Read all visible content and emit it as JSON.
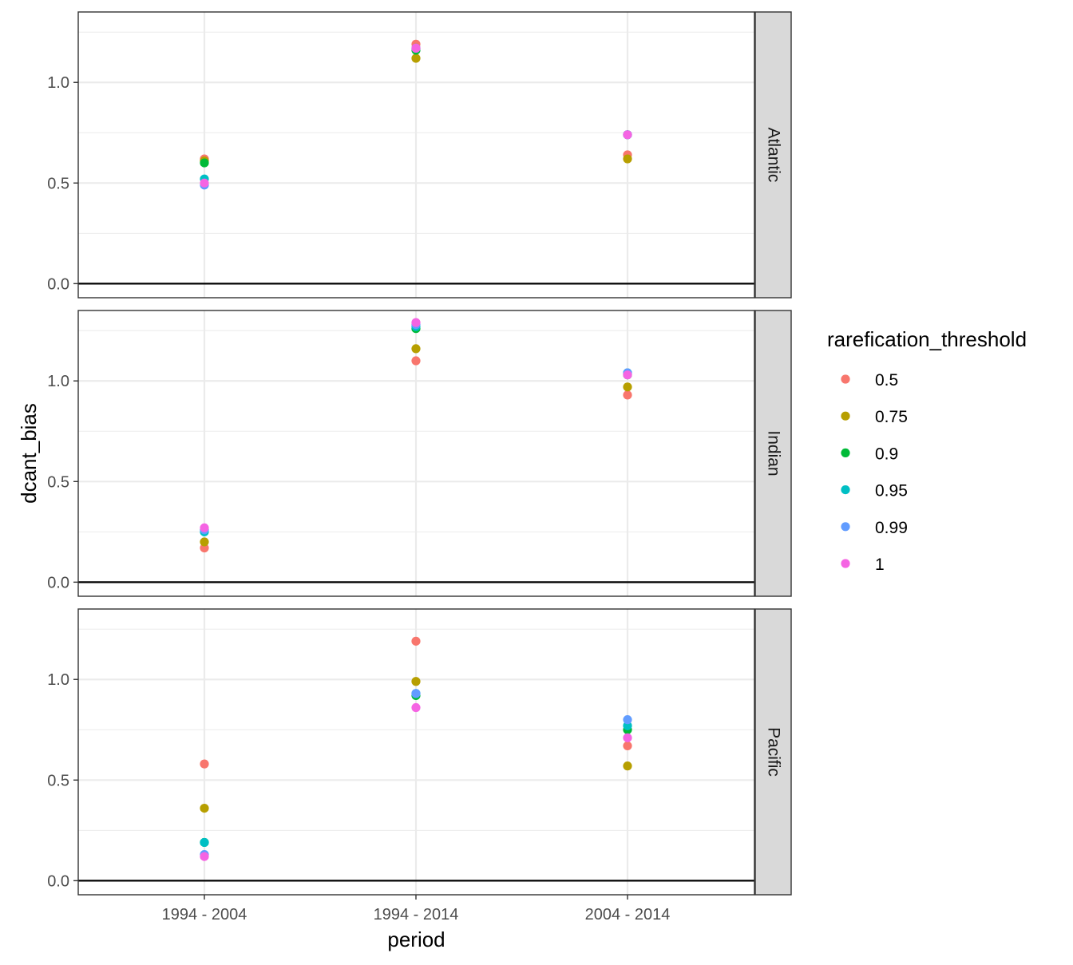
{
  "chart_data": {
    "type": "scatter",
    "xlabel": "period",
    "ylabel": "dcant_bias",
    "categories": [
      "1994 - 2004",
      "1994 - 2014",
      "2004 - 2014"
    ],
    "ylim": [
      -0.07,
      1.35
    ],
    "yticks": [
      0.0,
      0.5,
      1.0
    ],
    "ytick_labels": [
      "0.0",
      "0.5",
      "1.0"
    ],
    "hline": 0,
    "grid": true,
    "facets": [
      "Atlantic",
      "Indian",
      "Pacific"
    ],
    "legend": {
      "title": "rarefication_threshold",
      "position": "right",
      "entries": [
        {
          "label": "0.5",
          "color": "#F8766D"
        },
        {
          "label": "0.75",
          "color": "#B79F00"
        },
        {
          "label": "0.9",
          "color": "#00BA38"
        },
        {
          "label": "0.95",
          "color": "#00BFC4"
        },
        {
          "label": "0.99",
          "color": "#619CFF"
        },
        {
          "label": "1",
          "color": "#F564E3"
        }
      ]
    },
    "series": [
      {
        "name": "0.5",
        "values": {
          "Atlantic": [
            0.62,
            1.19,
            0.64
          ],
          "Indian": [
            0.17,
            1.1,
            0.93
          ],
          "Pacific": [
            0.58,
            1.19,
            0.67
          ]
        }
      },
      {
        "name": "0.75",
        "values": {
          "Atlantic": [
            0.61,
            1.12,
            0.62
          ],
          "Indian": [
            0.2,
            1.16,
            0.97
          ],
          "Pacific": [
            0.36,
            0.99,
            0.57
          ]
        }
      },
      {
        "name": "0.9",
        "values": {
          "Atlantic": [
            0.6,
            1.16,
            0.74
          ],
          "Indian": [
            0.26,
            1.26,
            1.03
          ],
          "Pacific": [
            0.19,
            0.92,
            0.75
          ]
        }
      },
      {
        "name": "0.95",
        "values": {
          "Atlantic": [
            0.52,
            1.17,
            0.74
          ],
          "Indian": [
            0.25,
            1.27,
            1.04
          ],
          "Pacific": [
            0.19,
            0.93,
            0.77
          ]
        }
      },
      {
        "name": "0.99",
        "values": {
          "Atlantic": [
            0.49,
            1.17,
            0.74
          ],
          "Indian": [
            0.26,
            1.28,
            1.04
          ],
          "Pacific": [
            0.13,
            0.93,
            0.8
          ]
        }
      },
      {
        "name": "1",
        "values": {
          "Atlantic": [
            0.5,
            1.17,
            0.74
          ],
          "Indian": [
            0.27,
            1.29,
            1.03
          ],
          "Pacific": [
            0.12,
            0.86,
            0.71
          ]
        }
      }
    ]
  }
}
